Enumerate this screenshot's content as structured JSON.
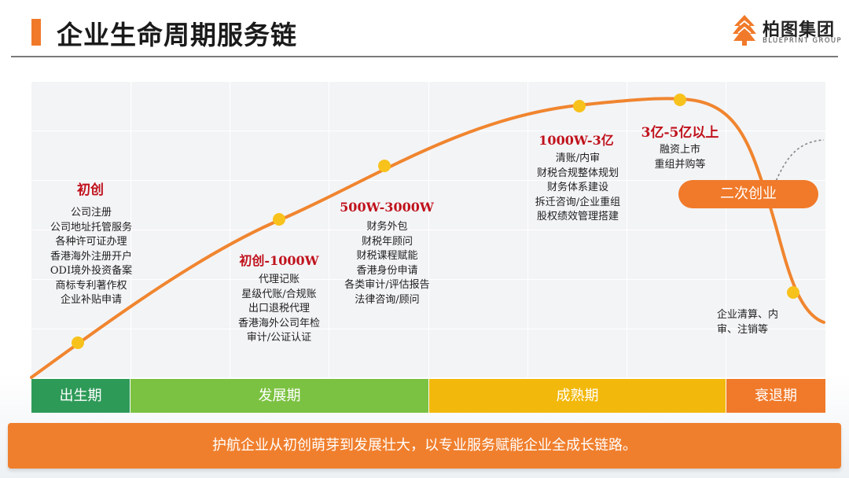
{
  "header": {
    "title": "企业生命周期服务链",
    "logo_name": "柏图集团",
    "logo_sub": "BLUEPRINT GROUP"
  },
  "stages": [
    {
      "title": "初创",
      "items": [
        "公司注册",
        "公司地址托管服务",
        "各种许可证办理",
        "香港海外注册开户",
        "ODI境外投资备案",
        "商标专利著作权",
        "企业补贴申请"
      ]
    },
    {
      "title": "初创-1000W",
      "items": [
        "代理记账",
        "星级代账/合规账",
        "出口退税代理",
        "香港海外公司年检",
        "审计/公证认证"
      ]
    },
    {
      "title": "500W-3000W",
      "items": [
        "财务外包",
        "财税年顾问",
        "财税课程赋能",
        "香港身份申请",
        "各类审计/评估报告",
        "法律咨询/顾问"
      ]
    },
    {
      "title": "1000W-3亿",
      "items": [
        "清账/内审",
        "财税合规整体规划",
        "财务体系建设",
        "拆迁咨询/企业重组",
        "股权绩效管理搭建"
      ]
    },
    {
      "title": "3亿-5亿以上",
      "items": [
        "融资上市",
        "重组并购等"
      ]
    }
  ],
  "decline": {
    "pill_label": "二次创业",
    "items": [
      "企业清算、内",
      "审、注销等"
    ]
  },
  "phases": [
    {
      "label": "出生期",
      "color": "#2e9a58"
    },
    {
      "label": "发展期",
      "color": "#7cc242"
    },
    {
      "label": "成熟期",
      "color": "#f2b80b"
    },
    {
      "label": "衰退期",
      "color": "#f07a2a"
    }
  ],
  "colors": {
    "accent": "#f07a2a",
    "curve": "#f0852f",
    "dot": "#f8c21c",
    "stage_title": "#c0121c"
  },
  "footer": {
    "banner": "护航企业从初创萌芽到发展壮大，以专业服务赋能企业全成长链路。"
  }
}
